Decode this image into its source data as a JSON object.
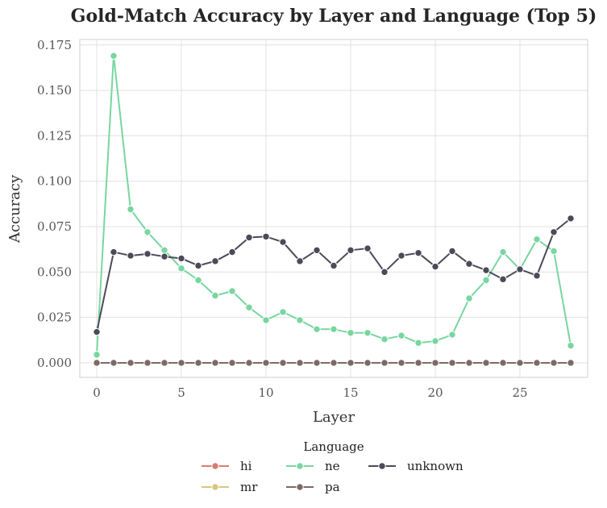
{
  "chart_data": {
    "type": "line",
    "title": "Gold-Match Accuracy by Layer and Language (Top 5)",
    "xlabel": "Layer",
    "ylabel": "Accuracy",
    "xlim": [
      -1,
      29
    ],
    "ylim": [
      -0.008,
      0.178
    ],
    "xticks": [
      0,
      5,
      10,
      15,
      20,
      25
    ],
    "xtick_labels": [
      "0",
      "5",
      "10",
      "15",
      "20",
      "25"
    ],
    "yticks": [
      0.0,
      0.025,
      0.05,
      0.075,
      0.1,
      0.125,
      0.15,
      0.175
    ],
    "ytick_labels": [
      "0.000",
      "0.025",
      "0.050",
      "0.075",
      "0.100",
      "0.125",
      "0.150",
      "0.175"
    ],
    "grid": true,
    "legend": {
      "title": "Language",
      "placement": "bottom-center"
    },
    "x": [
      0,
      1,
      2,
      3,
      4,
      5,
      6,
      7,
      8,
      9,
      10,
      11,
      12,
      13,
      14,
      15,
      16,
      17,
      18,
      19,
      20,
      21,
      22,
      23,
      24,
      25,
      26,
      27,
      28
    ],
    "series": [
      {
        "name": "hi",
        "color": "#d97c6e",
        "values": [
          0,
          0,
          0,
          0,
          0,
          0,
          0,
          0,
          0,
          0,
          0,
          0,
          0,
          0,
          0,
          0,
          0,
          0,
          0,
          0,
          0,
          0,
          0,
          0,
          0,
          0,
          0,
          0,
          0
        ]
      },
      {
        "name": "mr",
        "color": "#d8c77c",
        "values": [
          0,
          0,
          0,
          0,
          0,
          0,
          0,
          0,
          0,
          0,
          0,
          0,
          0,
          0,
          0,
          0,
          0,
          0,
          0,
          0,
          0,
          0,
          0,
          0,
          0,
          0,
          0,
          0,
          0
        ]
      },
      {
        "name": "ne",
        "color": "#78d6a0",
        "values": [
          0.0045,
          0.169,
          0.0845,
          0.072,
          0.062,
          0.052,
          0.0455,
          0.037,
          0.0395,
          0.0305,
          0.0235,
          0.028,
          0.0235,
          0.0185,
          0.0185,
          0.0165,
          0.0165,
          0.013,
          0.015,
          0.011,
          0.012,
          0.0155,
          0.0355,
          0.0455,
          0.061,
          0.0515,
          0.068,
          0.0615,
          0.0095
        ]
      },
      {
        "name": "pa",
        "color": "#7c6a68",
        "values": [
          0,
          0,
          0,
          0,
          0,
          0,
          0,
          0,
          0,
          0,
          0,
          0,
          0,
          0,
          0,
          0,
          0,
          0,
          0,
          0,
          0,
          0,
          0,
          0,
          0,
          0,
          0,
          0,
          0
        ]
      },
      {
        "name": "unknown",
        "color": "#4a4a58",
        "values": [
          0.017,
          0.061,
          0.059,
          0.06,
          0.0585,
          0.0575,
          0.0535,
          0.056,
          0.061,
          0.069,
          0.0695,
          0.0665,
          0.056,
          0.062,
          0.0535,
          0.062,
          0.063,
          0.05,
          0.059,
          0.0605,
          0.053,
          0.0615,
          0.0545,
          0.051,
          0.046,
          0.0515,
          0.048,
          0.072,
          0.0795
        ]
      }
    ]
  }
}
